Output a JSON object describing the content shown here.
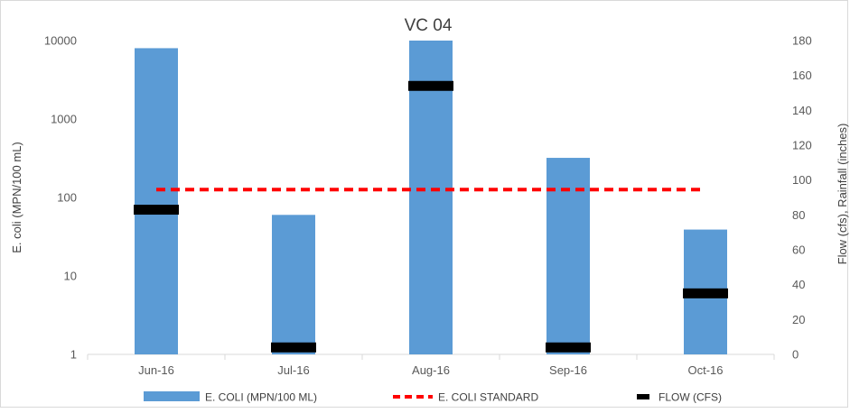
{
  "chart_data": {
    "type": "bar",
    "title": "VC 04",
    "categories": [
      "Jun-16",
      "Jul-16",
      "Aug-16",
      "Sep-16",
      "Oct-16"
    ],
    "ylabel": "E. coli (MPN/100 mL)",
    "y2label": "Flow (cfs), Rainfall (inches)",
    "y_scale": "log",
    "ylim": [
      1,
      10000
    ],
    "y_ticks": [
      "1",
      "10",
      "100",
      "1000",
      "10000"
    ],
    "y2lim": [
      0,
      180
    ],
    "y2_ticks": [
      "0",
      "20",
      "40",
      "60",
      "80",
      "100",
      "120",
      "140",
      "160",
      "180"
    ],
    "series": [
      {
        "name": "E. COLI (MPN/100 ML)",
        "type": "bar",
        "axis": "left",
        "color": "#5b9bd5",
        "values": [
          8000,
          60,
          10000,
          320,
          39
        ]
      },
      {
        "name": "E. COLI STANDARD",
        "type": "line",
        "style": "dashed",
        "axis": "left",
        "color": "#ff0000",
        "values": [
          126,
          126,
          126,
          126,
          126
        ]
      },
      {
        "name": "FLOW (CFS)",
        "type": "marker",
        "axis": "right",
        "color": "#000000",
        "values": [
          83,
          4,
          154,
          4,
          35
        ]
      }
    ],
    "legend": "bottom",
    "grid": false
  }
}
